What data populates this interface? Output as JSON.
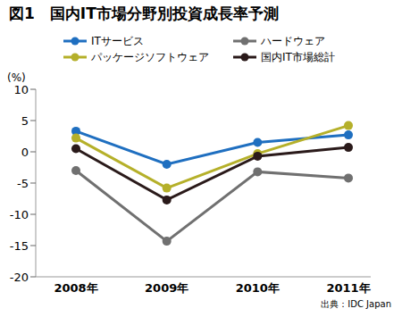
{
  "chart_data": {
    "type": "line",
    "title": "図1　国内IT市場分野別投資成長率予測",
    "ylabel": "(%)",
    "annotations": [
      "出典：IDC Japan"
    ],
    "categories": [
      "2008年",
      "2009年",
      "2010年",
      "2011年"
    ],
    "series": [
      {
        "name": "ITサービス",
        "color": "#1f6fc0",
        "marker": "circle",
        "values": [
          3.3,
          -2.0,
          1.5,
          2.7
        ]
      },
      {
        "name": "パッケージソフトウェア",
        "color": "#b5b02a",
        "marker": "circle",
        "values": [
          2.2,
          -5.8,
          -0.3,
          4.2
        ]
      },
      {
        "name": "ハードウェア",
        "color": "#707070",
        "marker": "circle",
        "values": [
          -3.0,
          -14.3,
          -3.2,
          -4.2
        ]
      },
      {
        "name": "国内IT市場総計",
        "color": "#2a1a1a",
        "marker": "circle",
        "values": [
          0.5,
          -7.7,
          -0.7,
          0.7
        ]
      }
    ],
    "ylim": [
      -20,
      10
    ],
    "yticks": [
      10,
      5,
      0,
      -5,
      -10,
      -15,
      -20
    ],
    "grid": false,
    "legend": "top"
  }
}
